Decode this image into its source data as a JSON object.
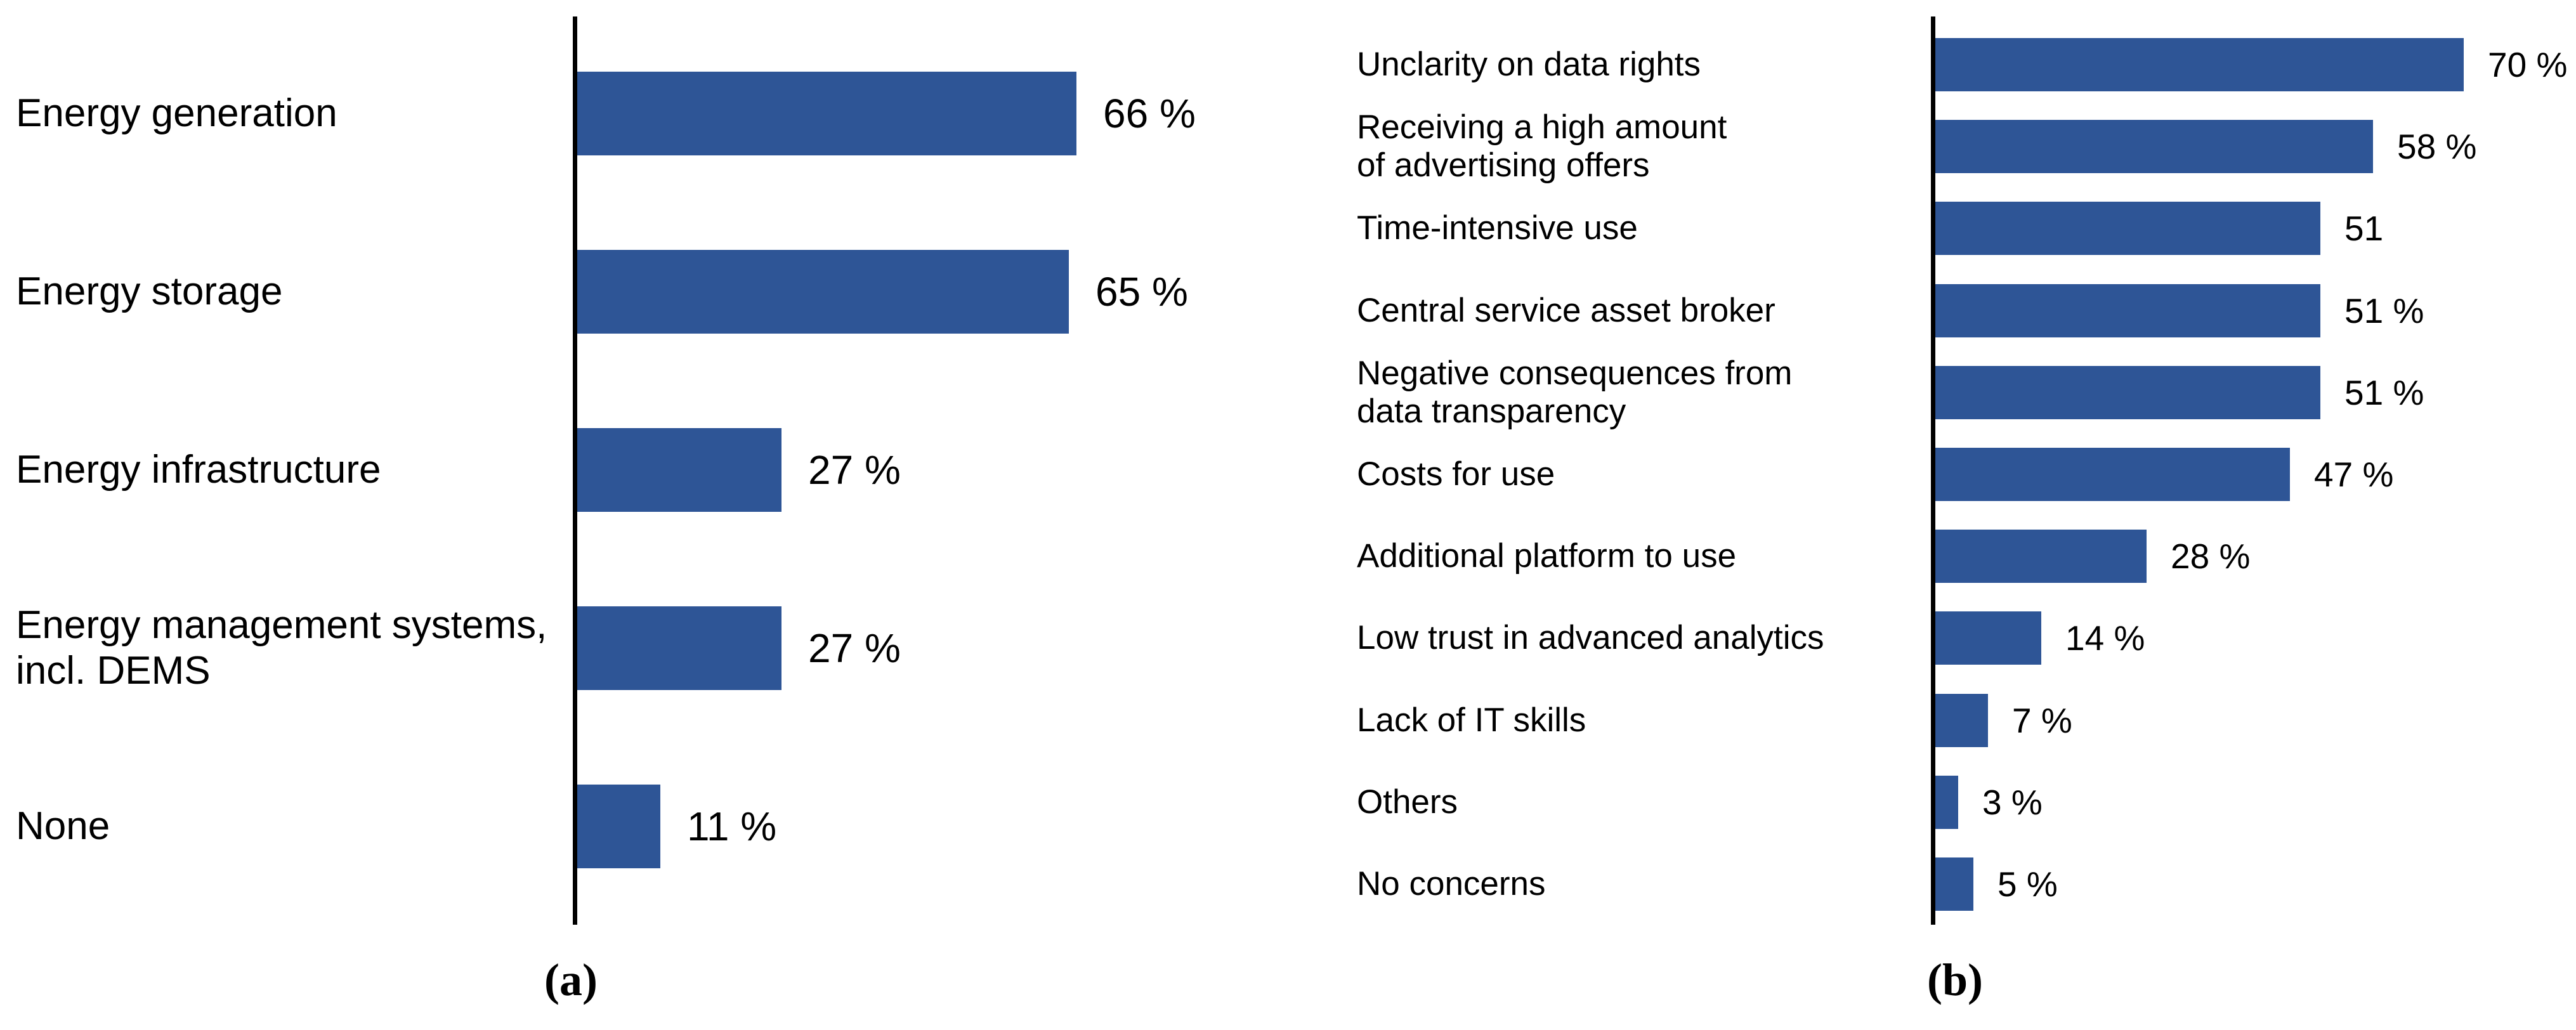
{
  "figure": {
    "background_color": "#ffffff",
    "bar_color": "#2E5596",
    "axis_color": "#000000",
    "text_color": "#000000"
  },
  "captions": {
    "a": "(a)",
    "b": "(b)"
  },
  "chart_data": [
    {
      "id": "a",
      "type": "bar",
      "orientation": "horizontal",
      "title": "",
      "xlabel": "",
      "ylabel": "",
      "grid": false,
      "legend": false,
      "unit": "%",
      "xlim": [
        0,
        100
      ],
      "caption": "(a)",
      "categories": [
        "Energy generation",
        "Energy storage",
        "Energy infrastructure",
        "Energy management systems,\nincl. DEMS",
        "None"
      ],
      "values": [
        66,
        65,
        27,
        27,
        11
      ],
      "value_labels": [
        "66 %",
        "65 %",
        "27 %",
        "27 %",
        "11 %"
      ]
    },
    {
      "id": "b",
      "type": "bar",
      "orientation": "horizontal",
      "title": "",
      "xlabel": "",
      "ylabel": "",
      "grid": false,
      "legend": false,
      "unit": "%",
      "xlim": [
        0,
        100
      ],
      "caption": "(b)",
      "categories": [
        "Unclarity on data rights",
        "Receiving a high amount\nof advertising offers",
        "Time-intensive use",
        "Central service asset broker",
        "Negative consequences from\ndata transparency",
        "Costs for use",
        "Additional platform to use",
        "Low trust in advanced analytics",
        "Lack of IT skills",
        "Others",
        "No concerns"
      ],
      "values": [
        70,
        58,
        51,
        51,
        51,
        47,
        28,
        14,
        7,
        3,
        5
      ],
      "value_labels": [
        "70 %",
        "58 %",
        "51",
        "51 %",
        "51 %",
        "47 %",
        "28 %",
        "14 %",
        "7 %",
        "3 %",
        "5 %"
      ]
    }
  ]
}
